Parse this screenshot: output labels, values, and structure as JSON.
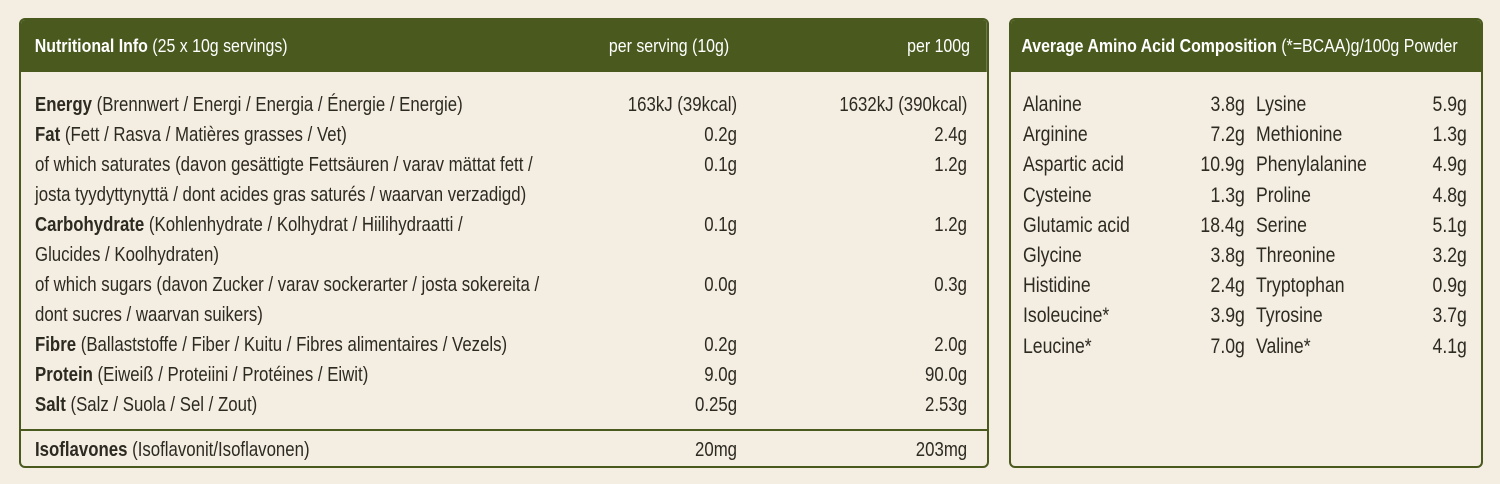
{
  "nutrition": {
    "header": {
      "title": "Nutritional Info",
      "subtitle": " (25 x 10g servings)",
      "col_serving": "per serving (10g)",
      "col_100g": "per 100g"
    },
    "rows": [
      {
        "name": "Energy",
        "desc": " (Brennwert / Energi / Energia / Énergie / Energie)",
        "desc2": "",
        "serving": "163kJ (39kcal)",
        "per100": "1632kJ (390kcal)"
      },
      {
        "name": "Fat",
        "desc": " (Fett / Rasva / Matières grasses / Vet)",
        "desc2": "",
        "serving": "0.2g",
        "per100": "2.4g"
      },
      {
        "name": "",
        "desc": "of which saturates  (davon gesättigte Fettsäuren / varav mättat fett /",
        "desc2": "josta tyydyttynyttä / dont acides gras saturés / waarvan verzadigd)",
        "serving": "0.1g",
        "per100": "1.2g"
      },
      {
        "name": "Carbohydrate",
        "desc": " (Kohlenhydrate / Kolhydrat / Hiilihydraatti /",
        "desc2": "Glucides / Koolhydraten)",
        "serving": "0.1g",
        "per100": "1.2g"
      },
      {
        "name": "",
        "desc": "of which sugars (davon Zucker / varav sockerarter / josta sokereita /",
        "desc2": "dont sucres / waarvan suikers)",
        "serving": "0.0g",
        "per100": "0.3g"
      },
      {
        "name": "Fibre",
        "desc": " (Ballaststoffe / Fiber / Kuitu / Fibres alimentaires / Vezels)",
        "desc2": "",
        "serving": "0.2g",
        "per100": "2.0g"
      },
      {
        "name": "Protein",
        "desc": " (Eiweiß / Proteiini / Protéines / Eiwit)",
        "desc2": "",
        "serving": "9.0g",
        "per100": "90.0g"
      },
      {
        "name": "Salt",
        "desc": "  (Salz / Suola / Sel / Zout)",
        "desc2": "",
        "serving": "0.25g",
        "per100": "2.53g"
      }
    ],
    "footer": {
      "name": "Isoflavones",
      "desc": " (Isoflavonit/Isoflavonen)",
      "serving": "20mg",
      "per100": "203mg"
    }
  },
  "amino": {
    "header": {
      "title": "Average Amino Acid Composition",
      "subtitle": " (*=BCAA)g/100g Powder"
    },
    "left": [
      {
        "name": "Alanine",
        "value": "3.8g"
      },
      {
        "name": "Arginine",
        "value": "7.2g"
      },
      {
        "name": "Aspartic acid",
        "value": "10.9g"
      },
      {
        "name": "Cysteine",
        "value": "1.3g"
      },
      {
        "name": "Glutamic acid",
        "value": "18.4g"
      },
      {
        "name": "Glycine",
        "value": "3.8g"
      },
      {
        "name": "Histidine",
        "value": "2.4g"
      },
      {
        "name": "Isoleucine*",
        "value": "3.9g"
      },
      {
        "name": "Leucine*",
        "value": "7.0g"
      }
    ],
    "right": [
      {
        "name": "Lysine",
        "value": "5.9g"
      },
      {
        "name": "Methionine",
        "value": "1.3g"
      },
      {
        "name": "Phenylalanine",
        "value": "4.9g"
      },
      {
        "name": "Proline",
        "value": "4.8g"
      },
      {
        "name": "Serine",
        "value": "5.1g"
      },
      {
        "name": "Threonine",
        "value": "3.2g"
      },
      {
        "name": "Tryptophan",
        "value": "0.9g"
      },
      {
        "name": "Tyrosine",
        "value": "3.7g"
      },
      {
        "name": "Valine*",
        "value": "4.1g"
      }
    ]
  }
}
